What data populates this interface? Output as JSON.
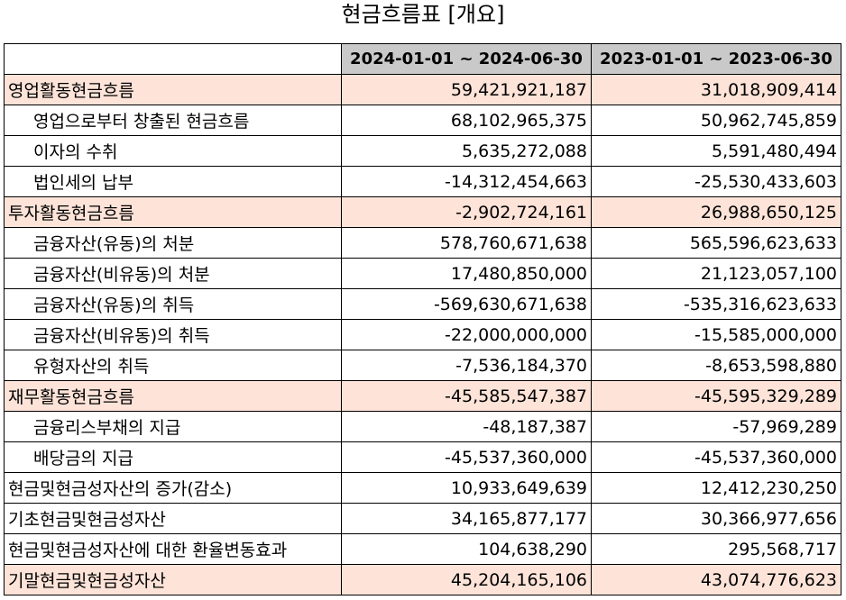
{
  "title": "현금흐름표 [개요]",
  "header": {
    "blank": "",
    "period_current": "2024-01-01 ~ 2024-06-30",
    "period_previous": "2023-01-01 ~ 2023-06-30"
  },
  "highlight_color": "#fde3d8",
  "header_color": "#c9c9c9",
  "rows": [
    {
      "label": "영업활동현금흐름",
      "current": "59,421,921,187",
      "previous": "31,018,909,414",
      "indent": false,
      "highlight": true
    },
    {
      "label": "영업으로부터 창출된 현금흐름",
      "current": "68,102,965,375",
      "previous": "50,962,745,859",
      "indent": true,
      "highlight": false
    },
    {
      "label": "이자의 수취",
      "current": "5,635,272,088",
      "previous": "5,591,480,494",
      "indent": true,
      "highlight": false
    },
    {
      "label": "법인세의 납부",
      "current": "-14,312,454,663",
      "previous": "-25,530,433,603",
      "indent": true,
      "highlight": false
    },
    {
      "label": "투자활동현금흐름",
      "current": "-2,902,724,161",
      "previous": "26,988,650,125",
      "indent": false,
      "highlight": true
    },
    {
      "label": "금융자산(유동)의 처분",
      "current": "578,760,671,638",
      "previous": "565,596,623,633",
      "indent": true,
      "highlight": false
    },
    {
      "label": "금융자산(비유동)의 처분",
      "current": "17,480,850,000",
      "previous": "21,123,057,100",
      "indent": true,
      "highlight": false
    },
    {
      "label": "금융자산(유동)의 취득",
      "current": "-569,630,671,638",
      "previous": "-535,316,623,633",
      "indent": true,
      "highlight": false
    },
    {
      "label": "금융자산(비유동)의 취득",
      "current": "-22,000,000,000",
      "previous": "-15,585,000,000",
      "indent": true,
      "highlight": false
    },
    {
      "label": "유형자산의 취득",
      "current": "-7,536,184,370",
      "previous": "-8,653,598,880",
      "indent": true,
      "highlight": false
    },
    {
      "label": "재무활동현금흐름",
      "current": "-45,585,547,387",
      "previous": "-45,595,329,289",
      "indent": false,
      "highlight": true
    },
    {
      "label": "금융리스부채의 지급",
      "current": "-48,187,387",
      "previous": "-57,969,289",
      "indent": true,
      "highlight": false
    },
    {
      "label": "배당금의 지급",
      "current": "-45,537,360,000",
      "previous": "-45,537,360,000",
      "indent": true,
      "highlight": false
    },
    {
      "label": "현금및현금성자산의 증가(감소)",
      "current": "10,933,649,639",
      "previous": "12,412,230,250",
      "indent": false,
      "highlight": false
    },
    {
      "label": "기초현금및현금성자산",
      "current": "34,165,877,177",
      "previous": "30,366,977,656",
      "indent": false,
      "highlight": false
    },
    {
      "label": "현금및현금성자산에 대한 환율변동효과",
      "current": "104,638,290",
      "previous": "295,568,717",
      "indent": false,
      "highlight": false
    },
    {
      "label": "기말현금및현금성자산",
      "current": "45,204,165,106",
      "previous": "43,074,776,623",
      "indent": false,
      "highlight": true
    }
  ]
}
